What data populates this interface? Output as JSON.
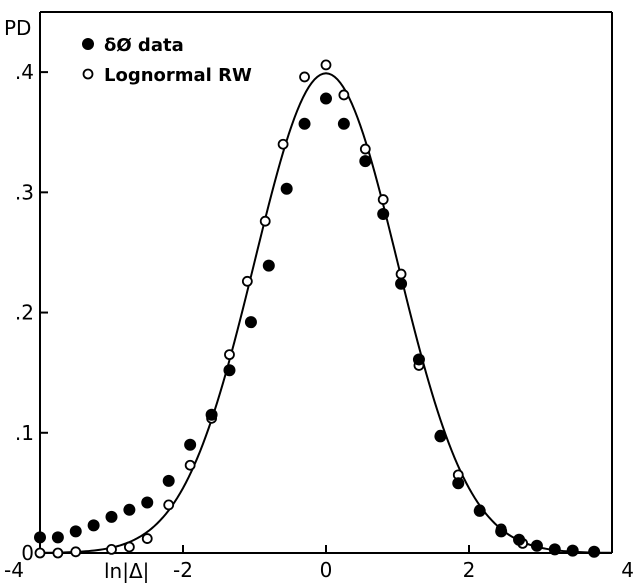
{
  "chart_data": {
    "type": "scatter",
    "ylabel": "PD",
    "xlabel": "ln|Δ|",
    "xlim": [
      -4,
      4
    ],
    "ylim": [
      0,
      0.45
    ],
    "x_ticks": [
      "-4",
      "-2",
      "0",
      "2",
      "4"
    ],
    "y_ticks": [
      "0",
      ".1",
      ".2",
      ".3",
      ".4"
    ],
    "legend_position": "top-left",
    "grid": false,
    "series": [
      {
        "name": "δØ data",
        "marker": "filled-circle",
        "color": "#000000",
        "points": [
          [
            -4.0,
            0.013
          ],
          [
            -3.75,
            0.013
          ],
          [
            -3.5,
            0.018
          ],
          [
            -3.25,
            0.023
          ],
          [
            -3.0,
            0.03
          ],
          [
            -2.75,
            0.036
          ],
          [
            -2.5,
            0.042
          ],
          [
            -2.2,
            0.06
          ],
          [
            -1.9,
            0.09
          ],
          [
            -1.6,
            0.115
          ],
          [
            -1.35,
            0.152
          ],
          [
            -1.05,
            0.192
          ],
          [
            -0.8,
            0.239
          ],
          [
            -0.55,
            0.303
          ],
          [
            -0.3,
            0.357
          ],
          [
            0.0,
            0.378
          ],
          [
            0.25,
            0.357
          ],
          [
            0.55,
            0.326
          ],
          [
            0.8,
            0.282
          ],
          [
            1.05,
            0.224
          ],
          [
            1.3,
            0.161
          ],
          [
            1.6,
            0.097
          ],
          [
            1.85,
            0.058
          ],
          [
            2.15,
            0.035
          ],
          [
            2.45,
            0.018
          ],
          [
            2.7,
            0.011
          ],
          [
            2.95,
            0.006
          ],
          [
            3.2,
            0.003
          ],
          [
            3.45,
            0.002
          ],
          [
            3.75,
            0.001
          ]
        ]
      },
      {
        "name": "Lognormal RW",
        "marker": "open-circle",
        "color": "#000000",
        "points": [
          [
            -4.0,
            0.0
          ],
          [
            -3.75,
            0.0
          ],
          [
            -3.5,
            0.001
          ],
          [
            -3.0,
            0.003
          ],
          [
            -2.75,
            0.005
          ],
          [
            -2.5,
            0.012
          ],
          [
            -2.2,
            0.04
          ],
          [
            -1.9,
            0.073
          ],
          [
            -1.6,
            0.112
          ],
          [
            -1.35,
            0.165
          ],
          [
            -1.1,
            0.226
          ],
          [
            -0.85,
            0.276
          ],
          [
            -0.6,
            0.34
          ],
          [
            -0.3,
            0.396
          ],
          [
            0.0,
            0.406
          ],
          [
            0.25,
            0.381
          ],
          [
            0.55,
            0.336
          ],
          [
            0.8,
            0.294
          ],
          [
            1.05,
            0.232
          ],
          [
            1.3,
            0.156
          ],
          [
            1.6,
            0.098
          ],
          [
            1.85,
            0.065
          ],
          [
            2.15,
            0.036
          ],
          [
            2.45,
            0.02
          ],
          [
            2.75,
            0.008
          ],
          [
            3.2,
            0.003
          ],
          [
            3.45,
            0.002
          ],
          [
            3.75,
            0.001
          ]
        ]
      }
    ],
    "fit_curve": {
      "type": "line",
      "mean": 0,
      "sigma": 1,
      "amplitude": 0.399
    }
  }
}
